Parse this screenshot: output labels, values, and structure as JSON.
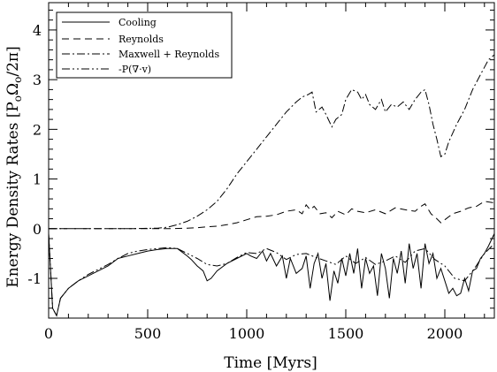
{
  "chart_data": {
    "type": "line",
    "xlabel": "Time [Myrs]",
    "ylabel": "Energy Density Rates [P",
    "ylabel_sub1": "o",
    "ylabel_mid": "Ω",
    "ylabel_sub2": "o",
    "ylabel_tail": "/2π]",
    "xlim": [
      0,
      2250
    ],
    "ylim": [
      -1.8,
      4.55
    ],
    "xticks": [
      0,
      500,
      1000,
      1500,
      2000
    ],
    "xtick_labels": [
      "0",
      "500",
      "1000",
      "1500",
      "2000"
    ],
    "yticks": [
      -1,
      0,
      1,
      2,
      3,
      4
    ],
    "ytick_labels": [
      "-1",
      "0",
      "1",
      "2",
      "3",
      "4"
    ],
    "legend_position": "top-left",
    "series": [
      {
        "name": "Cooling",
        "dash": "solid",
        "x": [
          0,
          20,
          40,
          60,
          100,
          150,
          200,
          250,
          300,
          350,
          400,
          450,
          500,
          550,
          600,
          650,
          700,
          720,
          750,
          780,
          800,
          820,
          850,
          900,
          950,
          1000,
          1020,
          1050,
          1080,
          1100,
          1120,
          1150,
          1180,
          1200,
          1220,
          1250,
          1280,
          1300,
          1320,
          1340,
          1360,
          1380,
          1400,
          1420,
          1440,
          1460,
          1480,
          1500,
          1520,
          1540,
          1560,
          1580,
          1600,
          1620,
          1640,
          1660,
          1680,
          1700,
          1720,
          1740,
          1760,
          1780,
          1800,
          1820,
          1840,
          1860,
          1880,
          1900,
          1920,
          1940,
          1960,
          1980,
          2000,
          2020,
          2040,
          2060,
          2080,
          2100,
          2120,
          2140,
          2160,
          2180,
          2200,
          2220,
          2250
        ],
        "y": [
          -0.1,
          -1.6,
          -1.75,
          -1.4,
          -1.2,
          -1.05,
          -0.95,
          -0.85,
          -0.75,
          -0.6,
          -0.55,
          -0.5,
          -0.45,
          -0.42,
          -0.4,
          -0.4,
          -0.55,
          -0.62,
          -0.75,
          -0.85,
          -1.05,
          -1.0,
          -0.85,
          -0.7,
          -0.6,
          -0.5,
          -0.55,
          -0.6,
          -0.45,
          -0.65,
          -0.5,
          -0.75,
          -0.55,
          -1.0,
          -0.6,
          -0.9,
          -0.8,
          -0.55,
          -1.2,
          -0.7,
          -0.5,
          -1.0,
          -0.7,
          -1.45,
          -0.85,
          -1.1,
          -0.6,
          -0.95,
          -0.5,
          -0.9,
          -0.4,
          -1.2,
          -0.6,
          -0.9,
          -0.75,
          -1.35,
          -0.5,
          -0.8,
          -1.4,
          -0.6,
          -0.9,
          -0.45,
          -1.1,
          -0.3,
          -0.8,
          -0.5,
          -1.2,
          -0.3,
          -0.7,
          -0.5,
          -1.0,
          -0.8,
          -1.05,
          -1.3,
          -1.2,
          -1.35,
          -1.3,
          -1.0,
          -1.25,
          -0.85,
          -0.8,
          -0.6,
          -0.5,
          -0.35,
          -0.1
        ]
      },
      {
        "name": "Reynolds",
        "dash": "dashed",
        "x": [
          0,
          100,
          200,
          300,
          400,
          500,
          600,
          700,
          750,
          800,
          850,
          900,
          950,
          1000,
          1050,
          1100,
          1150,
          1200,
          1250,
          1280,
          1300,
          1320,
          1340,
          1370,
          1400,
          1430,
          1460,
          1500,
          1530,
          1560,
          1600,
          1650,
          1700,
          1750,
          1800,
          1850,
          1880,
          1900,
          1930,
          1960,
          1980,
          2000,
          2040,
          2080,
          2120,
          2160,
          2200,
          2250
        ],
        "y": [
          0.0,
          0.0,
          0.0,
          0.0,
          0.0,
          0.0,
          0.0,
          0.01,
          0.02,
          0.04,
          0.05,
          0.08,
          0.12,
          0.18,
          0.24,
          0.25,
          0.28,
          0.35,
          0.38,
          0.3,
          0.48,
          0.38,
          0.45,
          0.3,
          0.32,
          0.22,
          0.35,
          0.28,
          0.4,
          0.35,
          0.32,
          0.38,
          0.3,
          0.42,
          0.38,
          0.35,
          0.45,
          0.5,
          0.3,
          0.2,
          0.12,
          0.18,
          0.3,
          0.35,
          0.42,
          0.45,
          0.55,
          0.52
        ]
      },
      {
        "name": "Maxwell + Reynolds",
        "dash": "dashdot",
        "x": [
          0,
          200,
          400,
          550,
          600,
          650,
          700,
          750,
          800,
          850,
          900,
          950,
          1000,
          1050,
          1100,
          1150,
          1200,
          1250,
          1280,
          1310,
          1330,
          1350,
          1380,
          1400,
          1430,
          1450,
          1480,
          1500,
          1530,
          1560,
          1580,
          1600,
          1620,
          1650,
          1680,
          1700,
          1730,
          1760,
          1790,
          1820,
          1850,
          1880,
          1900,
          1920,
          1940,
          1960,
          1980,
          2000,
          2020,
          2060,
          2100,
          2140,
          2180,
          2220,
          2250
        ],
        "y": [
          0.0,
          0.0,
          0.0,
          0.01,
          0.03,
          0.08,
          0.15,
          0.25,
          0.38,
          0.55,
          0.8,
          1.1,
          1.35,
          1.6,
          1.85,
          2.1,
          2.35,
          2.55,
          2.65,
          2.7,
          2.75,
          2.35,
          2.45,
          2.3,
          2.05,
          2.2,
          2.3,
          2.6,
          2.8,
          2.75,
          2.6,
          2.7,
          2.5,
          2.4,
          2.6,
          2.35,
          2.5,
          2.45,
          2.55,
          2.4,
          2.6,
          2.75,
          2.8,
          2.5,
          2.1,
          1.8,
          1.45,
          1.5,
          1.75,
          2.1,
          2.4,
          2.8,
          3.1,
          3.4,
          3.5
        ]
      },
      {
        "name": "-P(∇·v)",
        "dash": "dashdotdot",
        "x": [
          0,
          20,
          40,
          60,
          100,
          150,
          200,
          250,
          300,
          350,
          400,
          450,
          500,
          550,
          600,
          650,
          700,
          750,
          800,
          850,
          900,
          950,
          1000,
          1050,
          1100,
          1150,
          1200,
          1250,
          1300,
          1350,
          1400,
          1450,
          1500,
          1550,
          1600,
          1650,
          1700,
          1750,
          1800,
          1850,
          1900,
          1950,
          2000,
          2050,
          2100,
          2150,
          2200,
          2250
        ],
        "y": [
          -0.1,
          -1.6,
          -1.75,
          -1.4,
          -1.2,
          -1.05,
          -0.92,
          -0.82,
          -0.72,
          -0.6,
          -0.5,
          -0.45,
          -0.42,
          -0.4,
          -0.38,
          -0.4,
          -0.5,
          -0.6,
          -0.72,
          -0.75,
          -0.7,
          -0.58,
          -0.48,
          -0.5,
          -0.4,
          -0.48,
          -0.62,
          -0.52,
          -0.5,
          -0.58,
          -0.65,
          -0.72,
          -0.55,
          -0.7,
          -0.58,
          -0.72,
          -0.65,
          -0.55,
          -0.68,
          -0.45,
          -0.4,
          -0.62,
          -0.75,
          -1.0,
          -1.05,
          -0.8,
          -0.5,
          -0.3
        ]
      }
    ]
  }
}
